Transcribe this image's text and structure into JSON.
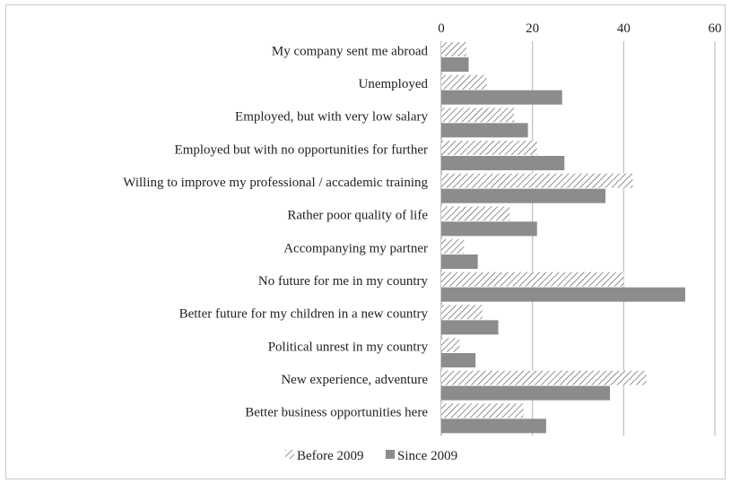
{
  "chart_data": {
    "type": "bar",
    "orientation": "horizontal",
    "title": "",
    "xlabel": "",
    "ylabel": "",
    "xlim": [
      0,
      60
    ],
    "x_ticks": [
      0,
      20,
      40,
      60
    ],
    "grid": true,
    "legend_position": "bottom",
    "categories": [
      "My company sent me abroad",
      "Unemployed",
      "Employed, but with very low salary",
      "Employed but with no opportunities for further",
      "Willing to improve my professional / accademic training",
      "Rather poor quality of life",
      "Accompanying my partner",
      "No future for me in my country",
      "Better future for my children in a new country",
      "Political unrest in my country",
      "New experience, adventure",
      "Better business opportunities here"
    ],
    "series": [
      {
        "name": "Before 2009",
        "pattern": "diagonal-hatch",
        "color": "#555555",
        "values": [
          5.5,
          10,
          16,
          21,
          42,
          15,
          5,
          40,
          9,
          4,
          45,
          18
        ]
      },
      {
        "name": "Since 2009",
        "pattern": "solid",
        "color": "#8c8c8c",
        "values": [
          6,
          26.5,
          19,
          27,
          36,
          21,
          8,
          53.5,
          12.5,
          7.5,
          37,
          23
        ]
      }
    ]
  }
}
